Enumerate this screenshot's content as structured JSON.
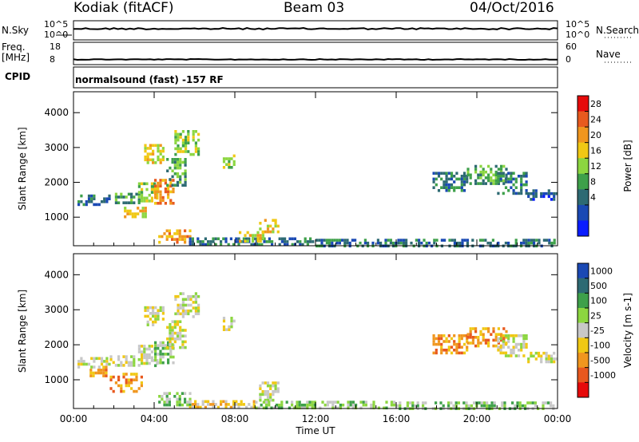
{
  "header": {
    "station": "Kodiak (fitACF)",
    "beam": "Beam 03",
    "date": "04/Oct/2016"
  },
  "strip_panels": {
    "nsky_label": "N.Sky",
    "nsky_ticks": [
      "10^5",
      "10^0"
    ],
    "nsearch_label": "N.Search",
    "nsearch_ticks": [
      "10^5",
      "10^0"
    ],
    "freq_label": "Freq.",
    "freq_unit": "[MHz]",
    "freq_ticks": [
      "18",
      "8"
    ],
    "nave_label": "Nave",
    "nave_ticks": [
      "60",
      "0"
    ],
    "cpid_label": "CPID",
    "cpid_value": "normalsound (fast) -157 RF"
  },
  "chart_data": [
    {
      "type": "heatmap",
      "name": "power",
      "ylabel": "Slant Range [km]",
      "xlabel": "",
      "xlim": [
        0,
        24
      ],
      "ylim": [
        180,
        4600
      ],
      "y_ticks": [
        "1000",
        "2000",
        "3000",
        "4000"
      ],
      "x_ticks": [
        "00:00",
        "04:00",
        "08:00",
        "12:00",
        "16:00",
        "20:00",
        "00:00"
      ],
      "colorbar_label": "Power [dB]",
      "colorbar_ticks": [
        "28",
        "24",
        "20",
        "16",
        "12",
        "8",
        "4"
      ],
      "colors": [
        "#0a1cff",
        "#1a49b4",
        "#2d6a73",
        "#3ea04a",
        "#8cd640",
        "#f0c814",
        "#f0961e",
        "#e85a1e",
        "#e60a0a"
      ],
      "regions": [
        {
          "t0": 0.2,
          "t1": 1.8,
          "r0": 1350,
          "r1": 1650,
          "v": 2
        },
        {
          "t0": 1.8,
          "t1": 3.2,
          "r0": 1400,
          "r1": 1700,
          "v": 3
        },
        {
          "t0": 3.2,
          "t1": 4.2,
          "r0": 1500,
          "r1": 2000,
          "v": 4
        },
        {
          "t0": 4.0,
          "t1": 5.0,
          "r0": 1400,
          "r1": 2100,
          "v": 6
        },
        {
          "t0": 4.6,
          "t1": 5.6,
          "r0": 1900,
          "r1": 2700,
          "v": 3
        },
        {
          "t0": 3.5,
          "t1": 4.5,
          "r0": 2600,
          "r1": 3100,
          "v": 5
        },
        {
          "t0": 5.0,
          "t1": 6.2,
          "r0": 2800,
          "r1": 3500,
          "v": 4
        },
        {
          "t0": 7.4,
          "t1": 8.0,
          "r0": 2400,
          "r1": 2800,
          "v": 4
        },
        {
          "t0": 4.2,
          "t1": 5.8,
          "r0": 250,
          "r1": 650,
          "v": 6
        },
        {
          "t0": 2.5,
          "t1": 3.6,
          "r0": 1000,
          "r1": 1300,
          "v": 5
        },
        {
          "t0": 5.6,
          "t1": 12.0,
          "r0": 200,
          "r1": 420,
          "v": 2
        },
        {
          "t0": 9.2,
          "t1": 10.2,
          "r0": 550,
          "r1": 950,
          "v": 5
        },
        {
          "t0": 8.2,
          "t1": 9.4,
          "r0": 300,
          "r1": 600,
          "v": 5
        },
        {
          "t0": 12.0,
          "t1": 23.8,
          "r0": 200,
          "r1": 380,
          "v": 2
        },
        {
          "t0": 17.8,
          "t1": 19.5,
          "r0": 1800,
          "r1": 2300,
          "v": 2
        },
        {
          "t0": 19.5,
          "t1": 21.5,
          "r0": 2000,
          "r1": 2500,
          "v": 3
        },
        {
          "t0": 21.0,
          "t1": 22.5,
          "r0": 1700,
          "r1": 2300,
          "v": 2
        },
        {
          "t0": 22.5,
          "t1": 24.0,
          "r0": 1550,
          "r1": 1800,
          "v": 1
        }
      ]
    },
    {
      "type": "heatmap",
      "name": "velocity",
      "ylabel": "Slant Range [km]",
      "xlabel": "Time UT",
      "xlim": [
        0,
        24
      ],
      "ylim": [
        180,
        4600
      ],
      "y_ticks": [
        "1000",
        "2000",
        "3000",
        "4000"
      ],
      "x_ticks": [
        "00:00",
        "04:00",
        "08:00",
        "12:00",
        "16:00",
        "20:00",
        "00:00"
      ],
      "colorbar_label": "Velocity [m s-1]",
      "colorbar_ticks": [
        "1000",
        "500",
        "100",
        "25",
        "-25",
        "-100",
        "-500",
        "-1000"
      ],
      "colors": [
        "#e60a0a",
        "#e8581e",
        "#f0961e",
        "#f0c814",
        "#c8c8c8",
        "#8cd640",
        "#3ea04a",
        "#2d6a73",
        "#1a49b4"
      ],
      "regions": [
        {
          "t0": 0.2,
          "t1": 1.8,
          "r0": 1350,
          "r1": 1650,
          "v": 4
        },
        {
          "t0": 1.8,
          "t1": 3.2,
          "r0": 1400,
          "r1": 1700,
          "v": 4
        },
        {
          "t0": 0.8,
          "t1": 1.6,
          "r0": 1150,
          "r1": 1400,
          "v": 2
        },
        {
          "t0": 1.8,
          "t1": 3.4,
          "r0": 700,
          "r1": 1200,
          "v": 2
        },
        {
          "t0": 3.2,
          "t1": 4.2,
          "r0": 1500,
          "r1": 2000,
          "v": 4
        },
        {
          "t0": 4.0,
          "t1": 5.0,
          "r0": 1400,
          "r1": 2100,
          "v": 5
        },
        {
          "t0": 4.6,
          "t1": 5.6,
          "r0": 1900,
          "r1": 2700,
          "v": 4
        },
        {
          "t0": 3.5,
          "t1": 4.5,
          "r0": 2600,
          "r1": 3100,
          "v": 4
        },
        {
          "t0": 5.0,
          "t1": 6.2,
          "r0": 2800,
          "r1": 3500,
          "v": 4
        },
        {
          "t0": 7.4,
          "t1": 8.0,
          "r0": 2400,
          "r1": 2800,
          "v": 4
        },
        {
          "t0": 4.2,
          "t1": 5.8,
          "r0": 250,
          "r1": 650,
          "v": 5
        },
        {
          "t0": 5.6,
          "t1": 9.0,
          "r0": 200,
          "r1": 420,
          "v": 3
        },
        {
          "t0": 9.2,
          "t1": 10.2,
          "r0": 400,
          "r1": 950,
          "v": 4
        },
        {
          "t0": 9.0,
          "t1": 16.0,
          "r0": 200,
          "r1": 400,
          "v": 5
        },
        {
          "t0": 16.0,
          "t1": 23.8,
          "r0": 200,
          "r1": 380,
          "v": 5
        },
        {
          "t0": 17.8,
          "t1": 19.5,
          "r0": 1800,
          "r1": 2300,
          "v": 2
        },
        {
          "t0": 19.5,
          "t1": 21.5,
          "r0": 2000,
          "r1": 2500,
          "v": 2
        },
        {
          "t0": 21.0,
          "t1": 22.5,
          "r0": 1700,
          "r1": 2300,
          "v": 4
        },
        {
          "t0": 22.5,
          "t1": 24.0,
          "r0": 1550,
          "r1": 1800,
          "v": 4
        }
      ]
    }
  ]
}
